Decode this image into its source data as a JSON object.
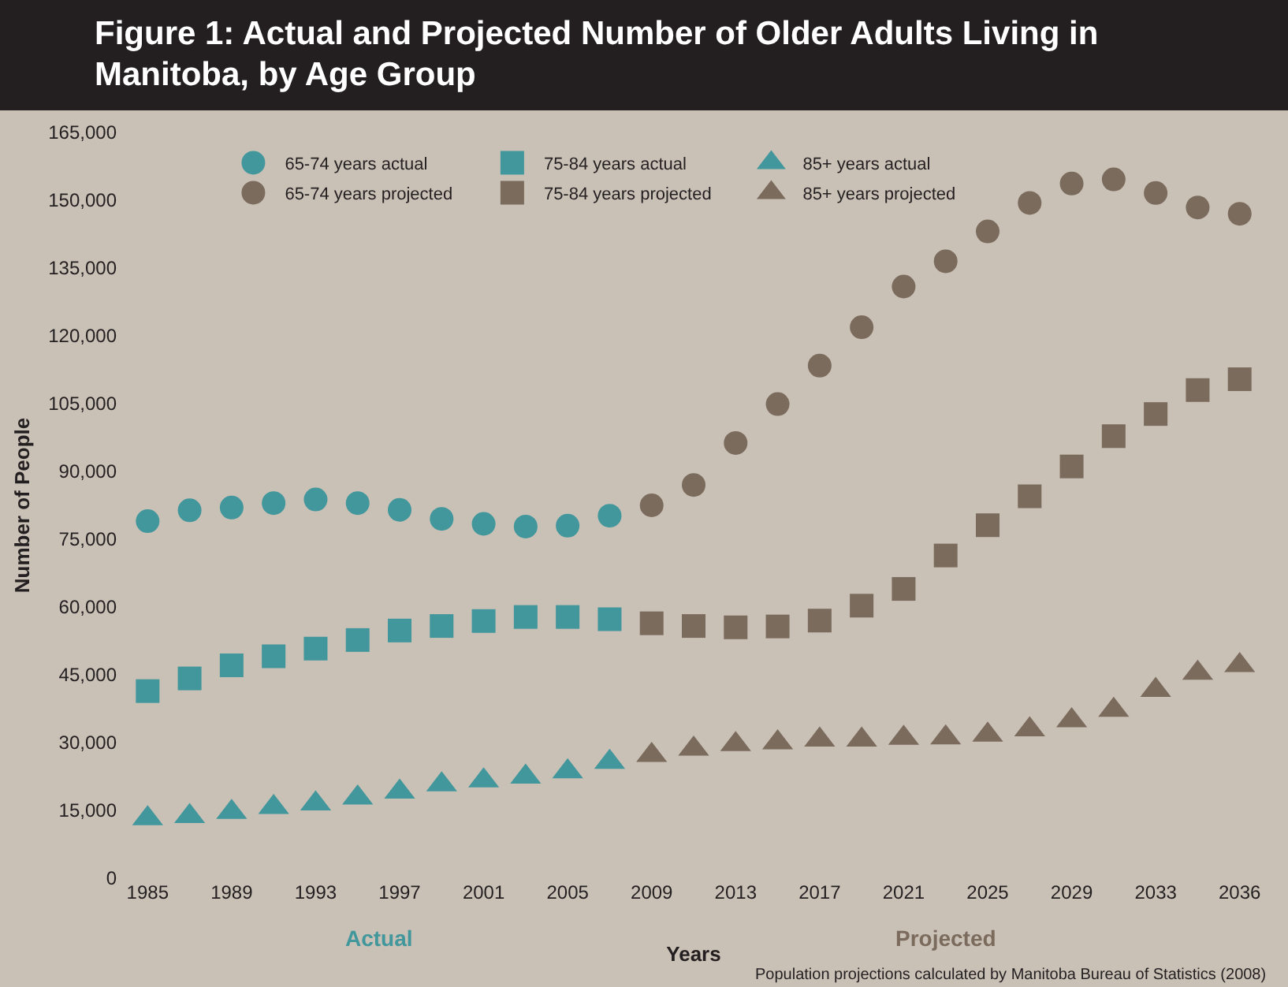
{
  "chart_data": {
    "type": "scatter",
    "title": "Figure 1: Actual and Projected Number of Older Adults Living in Manitoba, by Age Group",
    "xlabel": "Years",
    "ylabel": "Number of People",
    "categories": [
      "1985",
      null,
      "1989",
      null,
      "1993",
      null,
      "1997",
      null,
      "2001",
      null,
      "2005",
      null,
      "2009",
      null,
      "2013",
      null,
      "2017",
      null,
      "2021",
      null,
      "2025",
      null,
      "2029",
      null,
      "2033",
      null,
      "2036"
    ],
    "ylim": [
      0,
      165000
    ],
    "yticks": [
      {
        "value": 0,
        "label": "0"
      },
      {
        "value": 15000,
        "label": "15,000"
      },
      {
        "value": 30000,
        "label": "30,000"
      },
      {
        "value": 45000,
        "label": "45,000"
      },
      {
        "value": 60000,
        "label": "60,000"
      },
      {
        "value": 75000,
        "label": "75,000"
      },
      {
        "value": 90000,
        "label": "90,000"
      },
      {
        "value": 105000,
        "label": "105,000"
      },
      {
        "value": 120000,
        "label": "120,000"
      },
      {
        "value": 135000,
        "label": "135,000"
      },
      {
        "value": 150000,
        "label": "150,000"
      },
      {
        "value": 165000,
        "label": "165,000"
      }
    ],
    "legend": "top left",
    "series": [
      {
        "name": "65-74 years actual",
        "color": "#41979b",
        "marker": "circle",
        "values": [
          79000,
          81400,
          82000,
          83000,
          83800,
          83000,
          81500,
          79500,
          78400,
          77800,
          78000,
          80200,
          null,
          null,
          null,
          null,
          null,
          null,
          null,
          null,
          null,
          null,
          null,
          null,
          null,
          null,
          null
        ]
      },
      {
        "name": "65-74 years projected",
        "color": "#7b6b5d",
        "marker": "circle",
        "values": [
          null,
          null,
          null,
          null,
          null,
          null,
          null,
          null,
          null,
          null,
          null,
          null,
          82500,
          87000,
          96300,
          104900,
          113400,
          121900,
          130900,
          136500,
          143100,
          149400,
          153700,
          154600,
          151600,
          148400,
          147000
        ]
      },
      {
        "name": "75-84 years actual",
        "color": "#41979b",
        "marker": "square",
        "values": [
          41400,
          44200,
          47100,
          49100,
          50800,
          52700,
          54800,
          55800,
          56900,
          57800,
          57800,
          57300,
          null,
          null,
          null,
          null,
          null,
          null,
          null,
          null,
          null,
          null,
          null,
          null,
          null,
          null,
          null
        ]
      },
      {
        "name": "75-84 years projected",
        "color": "#7b6b5d",
        "marker": "square",
        "values": [
          null,
          null,
          null,
          null,
          null,
          null,
          null,
          null,
          null,
          null,
          null,
          null,
          56400,
          55800,
          55500,
          55700,
          57000,
          60300,
          64000,
          71400,
          78100,
          84500,
          91100,
          97800,
          102700,
          108000,
          110400
        ]
      },
      {
        "name": "85+ years actual",
        "color": "#41979b",
        "marker": "triangle",
        "values": [
          13200,
          13700,
          14600,
          15700,
          16500,
          17800,
          19100,
          20700,
          21600,
          22400,
          23600,
          25700,
          null,
          null,
          null,
          null,
          null,
          null,
          null,
          null,
          null,
          null,
          null,
          null,
          null,
          null,
          null
        ]
      },
      {
        "name": "85+ years projected",
        "color": "#7b6b5d",
        "marker": "triangle",
        "values": [
          null,
          null,
          null,
          null,
          null,
          null,
          null,
          null,
          null,
          null,
          null,
          null,
          27200,
          28600,
          29600,
          30000,
          30600,
          30600,
          31000,
          31100,
          31700,
          32900,
          34900,
          37200,
          41600,
          45400,
          47100
        ]
      }
    ],
    "annotations": [
      "Actual",
      "Projected",
      "Population projections calculated by Manitoba Bureau of Statistics (2008)"
    ]
  }
}
